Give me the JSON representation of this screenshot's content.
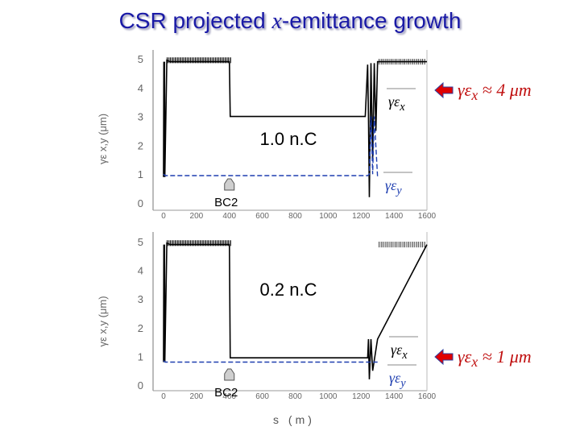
{
  "title": {
    "pre": "CSR projected ",
    "var": "x",
    "post": "-emittance growth"
  },
  "colors": {
    "title": "#1a1aa6",
    "series_x": "#000000",
    "series_y": "#1f3fb0",
    "arrow": "#e00000",
    "annotation": "#c01010"
  },
  "chart_data": [
    {
      "type": "line",
      "title": "1.0 nC",
      "xlabel": "",
      "ylabel": "γε x,y (μm)",
      "xlim": [
        0,
        1600
      ],
      "ylim": [
        0,
        5
      ],
      "xticks": [
        0,
        200,
        400,
        600,
        800,
        1000,
        1200,
        1400,
        1600
      ],
      "yticks": [
        0,
        1,
        2,
        3,
        4,
        5
      ],
      "series": [
        {
          "name": "γεx",
          "label_main": "γε",
          "label_sub": "x",
          "color": "#000000",
          "dash": false,
          "x": [
            0,
            2,
            4,
            6,
            8,
            20,
            40,
            400,
            405,
            410,
            800,
            1000,
            1150,
            1200,
            1225,
            1240,
            1245,
            1250,
            1260,
            1270,
            1280,
            1290,
            1300,
            1600
          ],
          "y": [
            0.9,
            4.9,
            0.9,
            4.9,
            0.9,
            4.95,
            4.9,
            4.9,
            3.0,
            3.0,
            3.0,
            3.0,
            3.0,
            3.0,
            3.0,
            4.8,
            3.0,
            0.2,
            4.85,
            1.5,
            4.85,
            2.5,
            4.9,
            4.9
          ]
        },
        {
          "name": "γεy",
          "label_main": "γε",
          "label_sub": "y",
          "color": "#1f3fb0",
          "dash": true,
          "x": [
            0,
            10,
            30,
            50,
            400,
            800,
            1200,
            1240,
            1250,
            1260,
            1270,
            1280,
            1300
          ],
          "y": [
            1.0,
            0.95,
            0.95,
            0.95,
            0.95,
            0.95,
            0.95,
            0.95,
            1.0,
            3.0,
            1.0,
            3.0,
            0.9
          ]
        }
      ],
      "annotations": [
        {
          "text": "1.0 n.C",
          "kind": "charge"
        },
        {
          "text": "BC2",
          "kind": "marker",
          "at_x": 400
        }
      ],
      "callout": {
        "main": "γε",
        "sub": "x",
        "rest": " ≈ 4 μm"
      }
    },
    {
      "type": "line",
      "title": "0.2 nC",
      "xlabel": "s (m)",
      "ylabel": "γε x,y (μm)",
      "xlim": [
        0,
        1600
      ],
      "ylim": [
        0,
        5
      ],
      "xticks": [
        0,
        200,
        400,
        600,
        800,
        1000,
        1200,
        1400,
        1600
      ],
      "yticks": [
        0,
        1,
        2,
        3,
        4,
        5
      ],
      "series": [
        {
          "name": "γεx",
          "label_main": "γε",
          "label_sub": "x",
          "color": "#000000",
          "dash": false,
          "x": [
            0,
            2,
            4,
            6,
            8,
            20,
            40,
            400,
            405,
            410,
            800,
            1000,
            1200,
            1240,
            1245,
            1250,
            1260,
            1270,
            1300,
            1600
          ],
          "y": [
            0.8,
            4.9,
            0.8,
            4.9,
            0.8,
            4.95,
            4.9,
            4.9,
            0.95,
            0.95,
            0.95,
            0.95,
            0.95,
            0.95,
            1.6,
            0.2,
            1.6,
            0.5,
            1.6,
            4.9
          ]
        },
        {
          "name": "γεy",
          "label_main": "γε",
          "label_sub": "y",
          "color": "#1f3fb0",
          "dash": true,
          "x": [
            0,
            10,
            30,
            400,
            800,
            1200,
            1250,
            1300
          ],
          "y": [
            0.85,
            0.8,
            0.8,
            0.8,
            0.8,
            0.8,
            0.8,
            0.8
          ]
        }
      ],
      "annotations": [
        {
          "text": "0.2 n.C",
          "kind": "charge"
        },
        {
          "text": "BC2",
          "kind": "marker",
          "at_x": 400
        }
      ],
      "callout": {
        "main": "γε",
        "sub": "x",
        "rest": " ≈ 1 μm"
      }
    }
  ]
}
